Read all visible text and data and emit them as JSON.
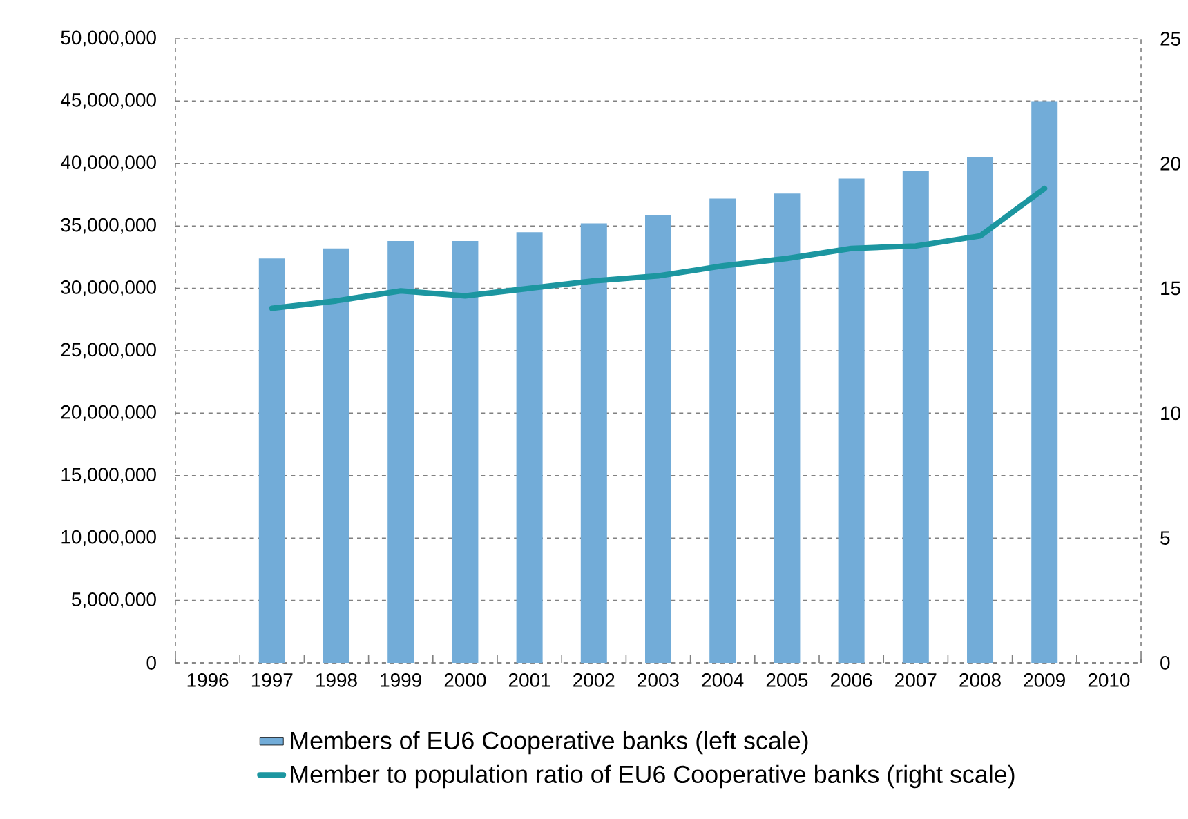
{
  "chart_data": {
    "type": "bar",
    "categories": [
      "1996",
      "1997",
      "1998",
      "1999",
      "2000",
      "2001",
      "2002",
      "2003",
      "2004",
      "2005",
      "2006",
      "2007",
      "2008",
      "2009",
      "2010"
    ],
    "series": [
      {
        "name": "Members of EU6 Cooperative banks (left scale)",
        "color": "#72acd8",
        "values": [
          null,
          32400000,
          33200000,
          33800000,
          33800000,
          34500000,
          35200000,
          35900000,
          37200000,
          37600000,
          38800000,
          39400000,
          40500000,
          45000000,
          null
        ]
      },
      {
        "name": "Member to population ratio of EU6 Cooperative banks (right scale)",
        "type": "line",
        "axis": "y2",
        "color": "#1c96a0",
        "values": [
          null,
          14.2,
          14.5,
          14.9,
          14.7,
          15.0,
          15.3,
          15.5,
          15.9,
          16.2,
          16.6,
          16.7,
          17.1,
          19.0,
          null
        ]
      }
    ],
    "ylim": [
      0,
      50000000
    ],
    "yticks": [
      {
        "value": 0,
        "label": "0"
      },
      {
        "value": 5000000,
        "label": "5,000,000"
      },
      {
        "value": 10000000,
        "label": "10,000,000"
      },
      {
        "value": 15000000,
        "label": "15,000,000"
      },
      {
        "value": 20000000,
        "label": "20,000,000"
      },
      {
        "value": 25000000,
        "label": "25,000,000"
      },
      {
        "value": 30000000,
        "label": "30,000,000"
      },
      {
        "value": 35000000,
        "label": "35,000,000"
      },
      {
        "value": 40000000,
        "label": "40,000,000"
      },
      {
        "value": 45000000,
        "label": "45,000,000"
      },
      {
        "value": 50000000,
        "label": "50,000,000"
      }
    ],
    "y2lim": [
      0,
      25
    ],
    "y2ticks": [
      0,
      5,
      10,
      15,
      20,
      25
    ],
    "grid": "y",
    "legend": "bottom"
  }
}
